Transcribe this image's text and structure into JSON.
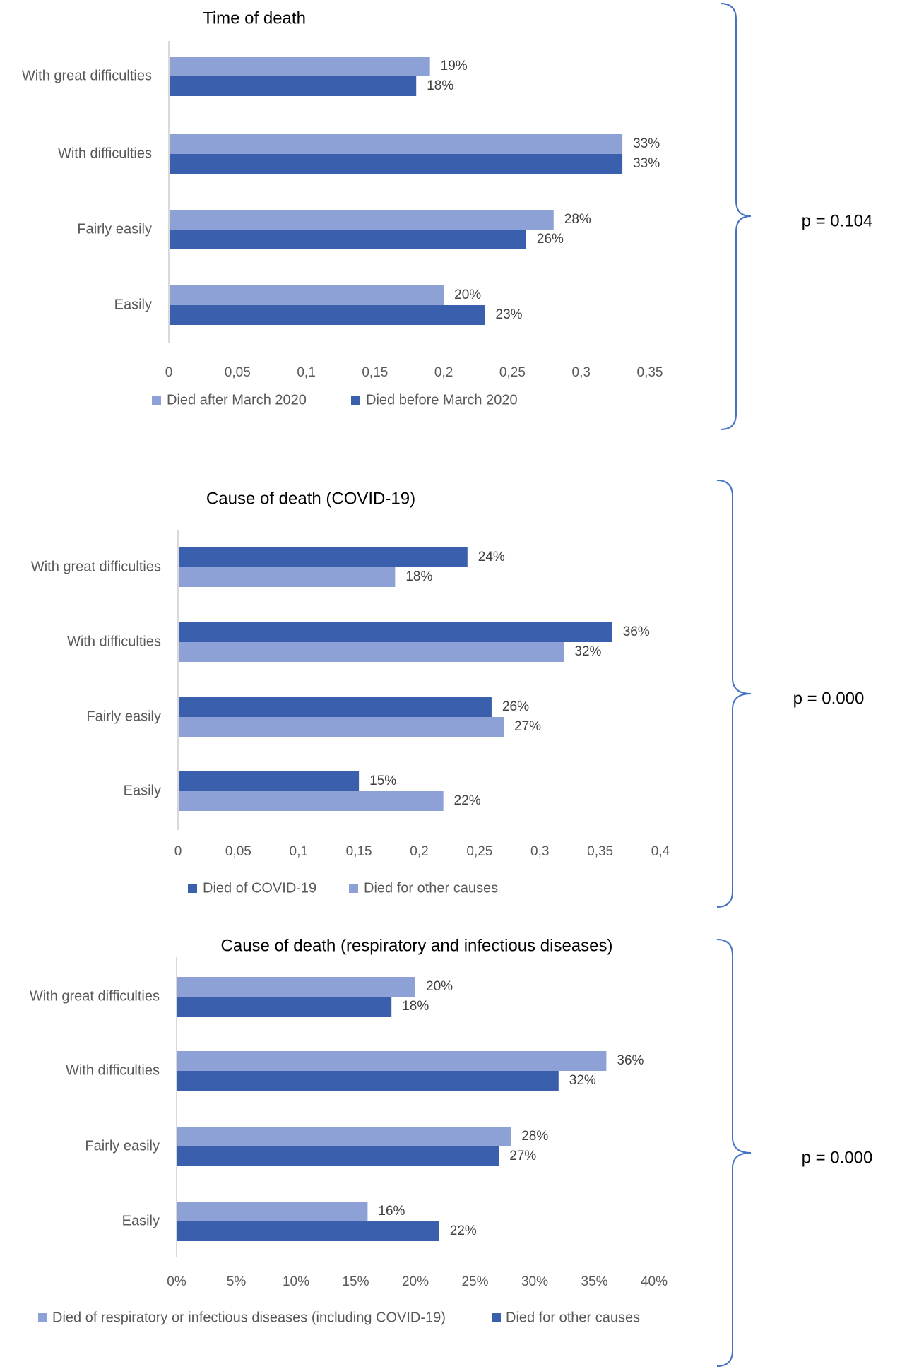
{
  "colors": {
    "light": "#8ea1d6",
    "dark": "#3a60ad",
    "axis": "#d9d9d9",
    "brace": "#4472c4"
  },
  "chart_data": [
    {
      "type": "bar",
      "orientation": "horizontal",
      "title": "Time of death",
      "categories": [
        "With great difficulties",
        "With difficulties",
        "Fairly easily",
        "Easily"
      ],
      "series": [
        {
          "name": "Died after March 2020",
          "color": "light",
          "values": [
            0.19,
            0.33,
            0.28,
            0.2
          ],
          "labels": [
            "19%",
            "33%",
            "28%",
            "20%"
          ]
        },
        {
          "name": "Died before March 2020",
          "color": "dark",
          "values": [
            0.18,
            0.33,
            0.26,
            0.23
          ],
          "labels": [
            "18%",
            "33%",
            "26%",
            "23%"
          ]
        }
      ],
      "xlim": [
        0,
        0.35
      ],
      "ticks": [
        "0",
        "0,05",
        "0,1",
        "0,15",
        "0,2",
        "0,25",
        "0,3",
        "0,35"
      ],
      "legend_order": [
        0,
        1
      ],
      "p_value": "p = 0.104"
    },
    {
      "type": "bar",
      "orientation": "horizontal",
      "title": "Cause of death (COVID-19)",
      "categories": [
        "With great difficulties",
        "With difficulties",
        "Fairly easily",
        "Easily"
      ],
      "series": [
        {
          "name": "Died of COVID-19",
          "color": "dark",
          "values": [
            0.24,
            0.36,
            0.26,
            0.15
          ],
          "labels": [
            "24%",
            "36%",
            "26%",
            "15%"
          ]
        },
        {
          "name": "Died for other causes",
          "color": "light",
          "values": [
            0.18,
            0.32,
            0.27,
            0.22
          ],
          "labels": [
            "18%",
            "32%",
            "27%",
            "22%"
          ]
        }
      ],
      "xlim": [
        0,
        0.4
      ],
      "ticks": [
        "0",
        "0,05",
        "0,1",
        "0,15",
        "0,2",
        "0,25",
        "0,3",
        "0,35",
        "0,4"
      ],
      "legend_order": [
        0,
        1
      ],
      "p_value": "p = 0.000"
    },
    {
      "type": "bar",
      "orientation": "horizontal",
      "title": "Cause of death (respiratory and infectious diseases)",
      "categories": [
        "With great difficulties",
        "With difficulties",
        "Fairly easily",
        "Easily"
      ],
      "series": [
        {
          "name": "Died of respiratory or infectious diseases (including COVID-19)",
          "color": "light",
          "values": [
            0.2,
            0.36,
            0.28,
            0.16
          ],
          "labels": [
            "20%",
            "36%",
            "28%",
            "16%"
          ]
        },
        {
          "name": "Died for other causes",
          "color": "dark",
          "values": [
            0.18,
            0.32,
            0.27,
            0.22
          ],
          "labels": [
            "18%",
            "32%",
            "27%",
            "22%"
          ]
        }
      ],
      "xlim": [
        0,
        0.4
      ],
      "ticks": [
        "0%",
        "5%",
        "10%",
        "15%",
        "20%",
        "25%",
        "30%",
        "35%",
        "40%"
      ],
      "legend_order": [
        0,
        1
      ],
      "p_value": "p = 0.000"
    }
  ]
}
